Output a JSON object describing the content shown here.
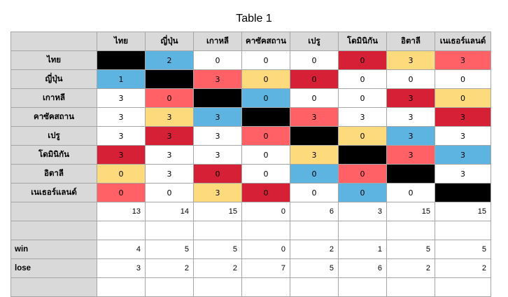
{
  "title": "Table 1",
  "colors": {
    "blue": "#5db4e0",
    "yellow": "#fddb7d",
    "red": "#d62035",
    "salmon": "#ff6166",
    "black": "#000000",
    "header_gray": "#d9d9d9"
  },
  "columns": [
    "ไทย",
    "ญี่ปุ่น",
    "เกาหลี",
    "คาซัคสถาน",
    "เปรู",
    "โดมินิกัน",
    "อิตาลี",
    "เนเธอร์แลนด์"
  ],
  "rows": [
    {
      "name": "ไทย",
      "cells": [
        {
          "v": "",
          "c": "black"
        },
        {
          "v": "2",
          "c": "blue"
        },
        {
          "v": "0",
          "c": ""
        },
        {
          "v": "0",
          "c": ""
        },
        {
          "v": "0",
          "c": ""
        },
        {
          "v": "0",
          "c": "red"
        },
        {
          "v": "3",
          "c": "yellow"
        },
        {
          "v": "3",
          "c": "salmon"
        }
      ]
    },
    {
      "name": "ญี่ปุ่น",
      "cells": [
        {
          "v": "1",
          "c": "blue"
        },
        {
          "v": "",
          "c": "black"
        },
        {
          "v": "3",
          "c": "salmon"
        },
        {
          "v": "0",
          "c": "yellow"
        },
        {
          "v": "0",
          "c": "red"
        },
        {
          "v": "0",
          "c": ""
        },
        {
          "v": "0",
          "c": ""
        },
        {
          "v": "0",
          "c": ""
        }
      ]
    },
    {
      "name": "เกาหลี",
      "cells": [
        {
          "v": "3",
          "c": ""
        },
        {
          "v": "0",
          "c": "salmon"
        },
        {
          "v": "",
          "c": "black"
        },
        {
          "v": "0",
          "c": "blue"
        },
        {
          "v": "0",
          "c": ""
        },
        {
          "v": "0",
          "c": ""
        },
        {
          "v": "3",
          "c": "red"
        },
        {
          "v": "0",
          "c": "yellow"
        }
      ]
    },
    {
      "name": "คาซัคสถาน",
      "cells": [
        {
          "v": "3",
          "c": ""
        },
        {
          "v": "3",
          "c": "yellow"
        },
        {
          "v": "3",
          "c": "blue"
        },
        {
          "v": "",
          "c": "black"
        },
        {
          "v": "3",
          "c": "salmon"
        },
        {
          "v": "3",
          "c": ""
        },
        {
          "v": "3",
          "c": ""
        },
        {
          "v": "3",
          "c": "red"
        }
      ]
    },
    {
      "name": "เปรู",
      "cells": [
        {
          "v": "3",
          "c": ""
        },
        {
          "v": "3",
          "c": "red"
        },
        {
          "v": "3",
          "c": ""
        },
        {
          "v": "0",
          "c": "salmon"
        },
        {
          "v": "",
          "c": "black"
        },
        {
          "v": "0",
          "c": "yellow"
        },
        {
          "v": "3",
          "c": "blue"
        },
        {
          "v": "3",
          "c": ""
        }
      ]
    },
    {
      "name": "โดมินิกัน",
      "cells": [
        {
          "v": "3",
          "c": "red"
        },
        {
          "v": "3",
          "c": ""
        },
        {
          "v": "3",
          "c": ""
        },
        {
          "v": "0",
          "c": ""
        },
        {
          "v": "3",
          "c": "yellow"
        },
        {
          "v": "",
          "c": "black"
        },
        {
          "v": "3",
          "c": "salmon"
        },
        {
          "v": "3",
          "c": "blue"
        }
      ]
    },
    {
      "name": "อิตาลี",
      "cells": [
        {
          "v": "0",
          "c": "yellow"
        },
        {
          "v": "3",
          "c": ""
        },
        {
          "v": "0",
          "c": "red"
        },
        {
          "v": "0",
          "c": ""
        },
        {
          "v": "0",
          "c": "blue"
        },
        {
          "v": "0",
          "c": "salmon"
        },
        {
          "v": "",
          "c": "black"
        },
        {
          "v": "3",
          "c": ""
        }
      ]
    },
    {
      "name": "เนเธอร์แลนด์",
      "cells": [
        {
          "v": "0",
          "c": "salmon"
        },
        {
          "v": "0",
          "c": ""
        },
        {
          "v": "3",
          "c": "yellow"
        },
        {
          "v": "0",
          "c": "red"
        },
        {
          "v": "0",
          "c": ""
        },
        {
          "v": "0",
          "c": "blue"
        },
        {
          "v": "0",
          "c": ""
        },
        {
          "v": "",
          "c": "black"
        }
      ]
    }
  ],
  "summary_rows": [
    {
      "label": "",
      "values": [
        "13",
        "14",
        "15",
        "0",
        "6",
        "3",
        "15",
        "15"
      ]
    },
    {
      "label": "",
      "values": [
        "",
        "",
        "",
        "",
        "",
        "",
        "",
        ""
      ]
    },
    {
      "label": "win",
      "values": [
        "4",
        "5",
        "5",
        "0",
        "2",
        "1",
        "5",
        "5"
      ]
    },
    {
      "label": "lose",
      "values": [
        "3",
        "2",
        "2",
        "7",
        "5",
        "6",
        "2",
        "2"
      ]
    },
    {
      "label": "",
      "values": [
        "",
        "",
        "",
        "",
        "",
        "",
        "",
        ""
      ]
    }
  ]
}
